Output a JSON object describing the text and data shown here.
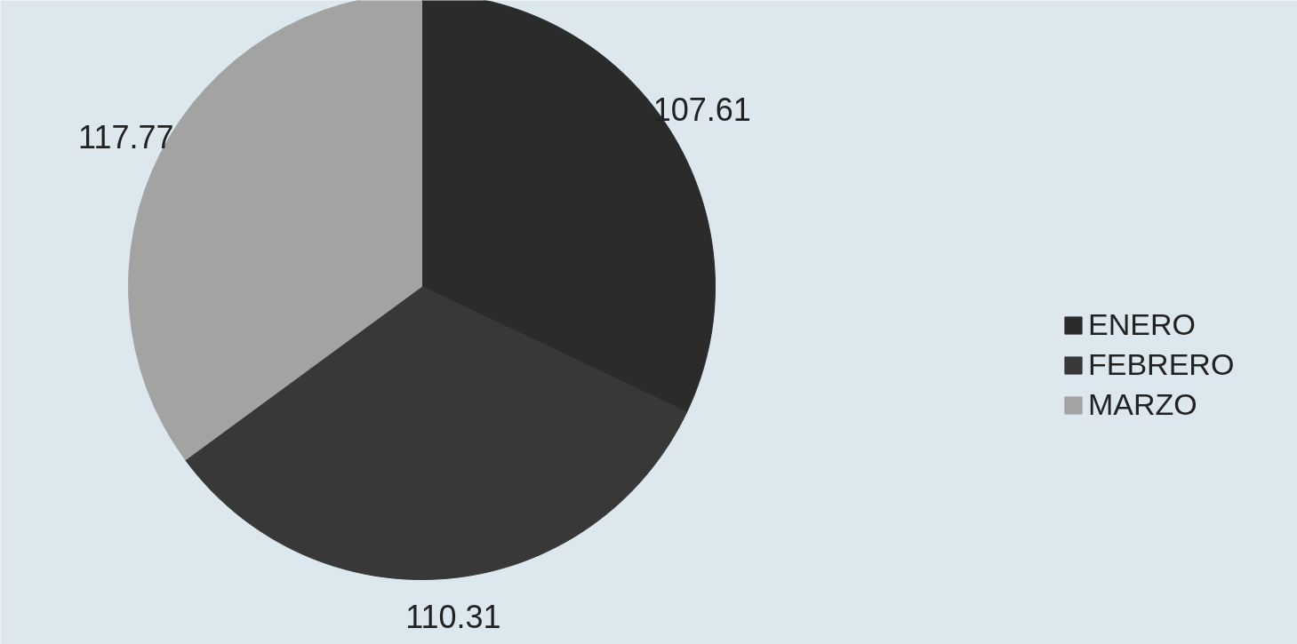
{
  "chart_data": {
    "type": "pie",
    "categories": [
      "ENERO",
      "FEBRERO",
      "MARZO"
    ],
    "values": [
      107.61,
      110.31,
      117.77
    ],
    "colors": [
      "#2b2b2b",
      "#383838",
      "#a3a3a3"
    ],
    "data_labels": true,
    "legend": "right"
  }
}
